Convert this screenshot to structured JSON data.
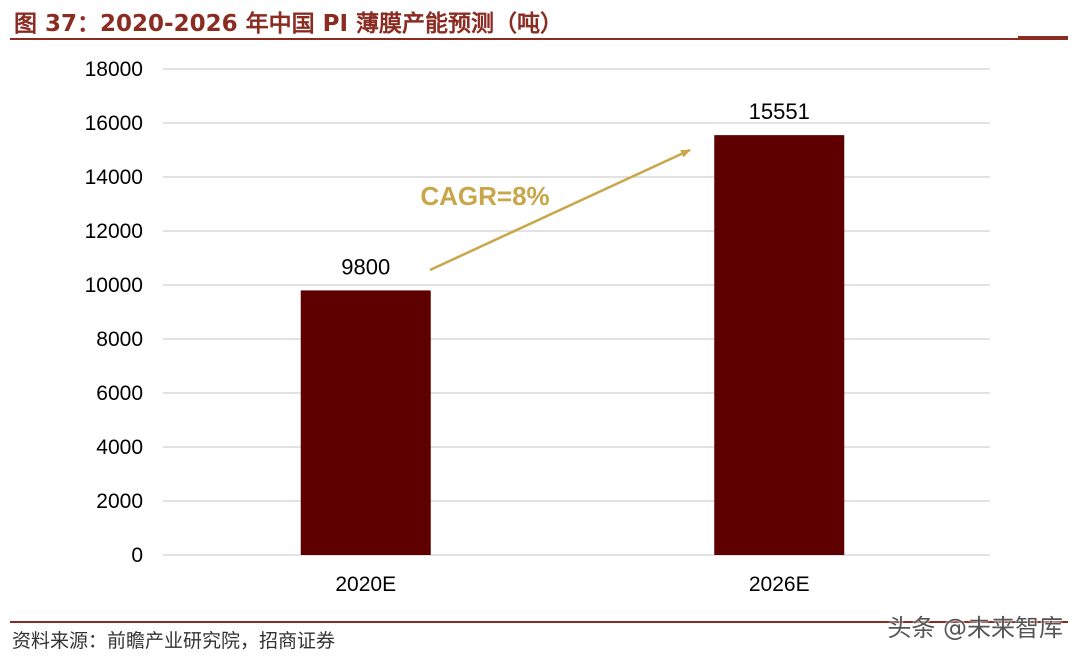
{
  "figure": {
    "title": "图 37：2020-2026 年中国 PI 薄膜产能预测（吨）",
    "source": "资料来源：前瞻产业研究院，招商证券",
    "watermark": "头条 @未来智库"
  },
  "colors": {
    "bar": "#5E0000",
    "title": "#8B2C23",
    "annotation": "#C9A64A",
    "grid": "#D9D9D9"
  },
  "chart_data": {
    "type": "bar",
    "categories": [
      "2020E",
      "2026E"
    ],
    "values": [
      9800,
      15551
    ],
    "data_labels": [
      "9800",
      "15551"
    ],
    "ylim": [
      0,
      18000
    ],
    "yticks": [
      0,
      2000,
      4000,
      6000,
      8000,
      10000,
      12000,
      14000,
      16000,
      18000
    ],
    "grid": true,
    "legend": "none",
    "annotation": "CAGR=8%"
  }
}
